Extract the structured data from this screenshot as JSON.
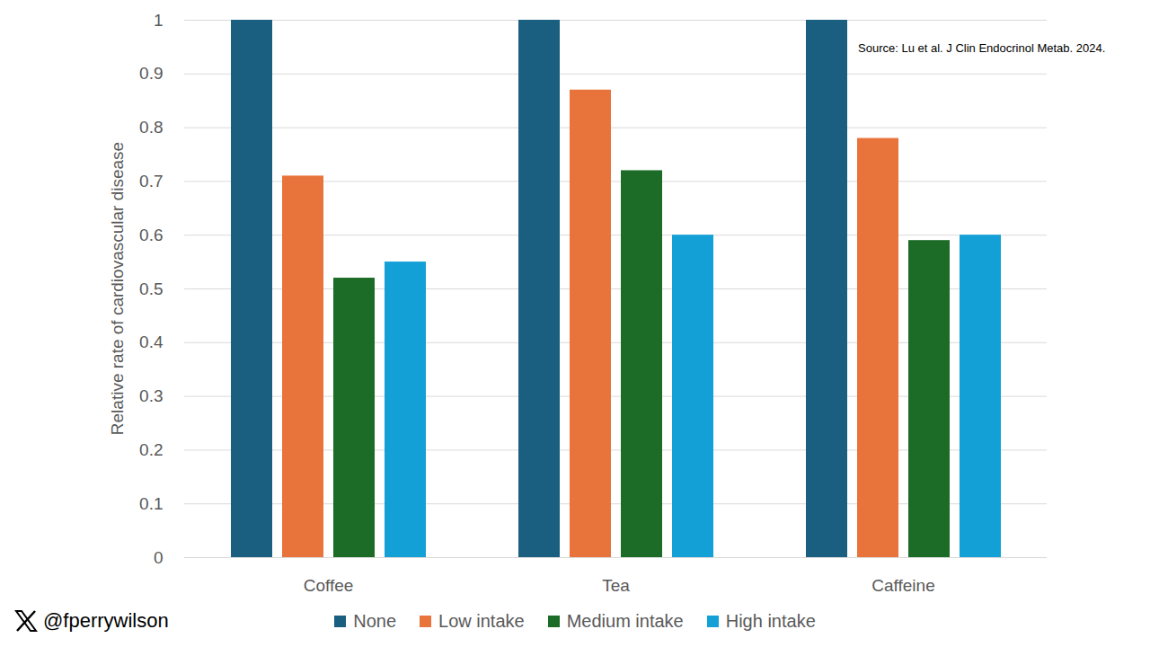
{
  "chart_data": {
    "type": "bar",
    "categories": [
      "Coffee",
      "Tea",
      "Caffeine"
    ],
    "series": [
      {
        "name": "None",
        "color": "#1a5e80",
        "values": [
          1,
          1,
          1
        ]
      },
      {
        "name": "Low intake",
        "color": "#e8743b",
        "values": [
          0.71,
          0.87,
          0.78
        ]
      },
      {
        "name": "Medium intake",
        "color": "#1c6b27",
        "values": [
          0.52,
          0.72,
          0.59
        ]
      },
      {
        "name": "High intake",
        "color": "#12a0d7",
        "values": [
          0.55,
          0.6,
          0.6
        ]
      }
    ],
    "ylabel": "Relative rate of cardiovascular disease",
    "ylim": [
      0,
      1
    ],
    "yticks": [
      0,
      0.1,
      0.2,
      0.3,
      0.4,
      0.5,
      0.6,
      0.7,
      0.8,
      0.9,
      1
    ],
    "grid": true,
    "legend": "bottom",
    "annotations": [
      "Source: Lu et al. J Clin Endocrinol Metab. 2024.",
      "@fperrywilson"
    ]
  }
}
